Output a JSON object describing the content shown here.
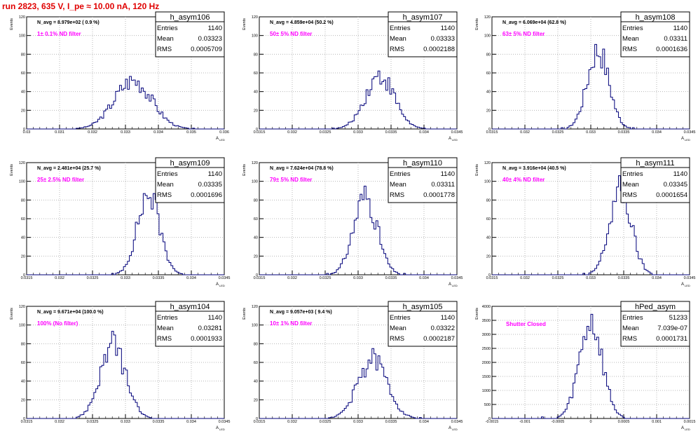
{
  "header": {
    "title": "run 2823,   635 V, I_pe ≈ 10.00 nA, 120 Hz"
  },
  "colors": {
    "hist": "#00007a",
    "accent": "#ff00ff",
    "title": "#e00000",
    "grid": "#b8b8b8"
  },
  "stats_labels": {
    "entries": "Entries",
    "mean": "Mean",
    "rms": "RMS"
  },
  "chart_data": [
    {
      "type": "histogram",
      "name": "h_asym106",
      "entries": "1140",
      "mean": "0.03323",
      "rms": "0.0005709",
      "navg": "N_avg = 8.979e+02 ( 0.9 %)",
      "filter": "1± 0.1% ND filter",
      "xlabel": "A_LED",
      "ylabel": "Events",
      "xlim": [
        0.03,
        0.036
      ],
      "ylim": [
        0,
        120
      ],
      "xticks": [
        "0.03",
        "0.031",
        "0.032",
        "0.033",
        "0.034",
        "0.035",
        "0.036"
      ],
      "yticks": [
        "0",
        "20",
        "40",
        "60",
        "80",
        "100",
        "120"
      ],
      "grid": true,
      "center": 0.03323,
      "sigma": 0.00057,
      "peak": 52
    },
    {
      "type": "histogram",
      "name": "h_asym107",
      "entries": "1140",
      "mean": "0.03333",
      "rms": "0.0002188",
      "navg": "N_avg = 4.859e+04 (50.2 %)",
      "filter": "50± 5% ND filter",
      "xlabel": "A_LED",
      "ylabel": "Events",
      "xlim": [
        0.0315,
        0.0345
      ],
      "ylim": [
        0,
        120
      ],
      "xticks": [
        "0.0315",
        "0.032",
        "0.0325",
        "0.033",
        "0.0335",
        "0.034",
        "0.0345"
      ],
      "yticks": [
        "0",
        "20",
        "40",
        "60",
        "80",
        "100",
        "120"
      ],
      "grid": true,
      "center": 0.03333,
      "sigma": 0.00022,
      "peak": 57
    },
    {
      "type": "histogram",
      "name": "h_asym108",
      "entries": "1140",
      "mean": "0.03311",
      "rms": "0.0001636",
      "navg": "N_avg = 6.069e+04 (62.8 %)",
      "filter": "63± 5% ND filter",
      "xlabel": "A_LED",
      "ylabel": "Events",
      "xlim": [
        0.0315,
        0.0345
      ],
      "ylim": [
        0,
        120
      ],
      "xticks": [
        "0.0315",
        "0.032",
        "0.0325",
        "0.033",
        "0.0335",
        "0.034",
        "0.0345"
      ],
      "yticks": [
        "0",
        "20",
        "40",
        "60",
        "80",
        "100",
        "120"
      ],
      "grid": true,
      "center": 0.03311,
      "sigma": 0.000164,
      "peak": 85
    },
    {
      "type": "histogram",
      "name": "h_asym109",
      "entries": "1140",
      "mean": "0.03335",
      "rms": "0.0001696",
      "navg": "N_avg = 2.481e+04 (25.7 %)",
      "filter": "25± 2.5% ND filter",
      "xlabel": "A_LED",
      "ylabel": "Events",
      "xlim": [
        0.0315,
        0.0345
      ],
      "ylim": [
        0,
        120
      ],
      "xticks": [
        "0.0315",
        "0.032",
        "0.0325",
        "0.033",
        "0.0335",
        "0.034",
        "0.0345"
      ],
      "yticks": [
        "0",
        "20",
        "40",
        "60",
        "80",
        "100",
        "120"
      ],
      "grid": true,
      "center": 0.03335,
      "sigma": 0.00017,
      "peak": 86
    },
    {
      "type": "histogram",
      "name": "h_asym110",
      "entries": "1140",
      "mean": "0.03311",
      "rms": "0.0001778",
      "navg": "N_avg = 7.624e+04 (78.8 %)",
      "filter": "79± 5% ND filter",
      "xlabel": "A_LED",
      "ylabel": "Events",
      "xlim": [
        0.0315,
        0.0345
      ],
      "ylim": [
        0,
        120
      ],
      "xticks": [
        "0.0315",
        "0.032",
        "0.0325",
        "0.033",
        "0.0335",
        "0.034",
        "0.0345"
      ],
      "yticks": [
        "0",
        "20",
        "40",
        "60",
        "80",
        "100",
        "120"
      ],
      "grid": true,
      "center": 0.03311,
      "sigma": 0.000178,
      "peak": 84
    },
    {
      "type": "histogram",
      "name": "h_asym111",
      "entries": "1140",
      "mean": "0.03345",
      "rms": "0.0001654",
      "navg": "N_avg = 3.916e+04 (40.5 %)",
      "filter": "40± 4% ND filter",
      "xlabel": "A_LED",
      "ylabel": "Events",
      "xlim": [
        0.0315,
        0.0345
      ],
      "ylim": [
        0,
        120
      ],
      "xticks": [
        "0.0315",
        "0.032",
        "0.0325",
        "0.033",
        "0.0335",
        "0.034",
        "0.0345"
      ],
      "yticks": [
        "0",
        "20",
        "40",
        "60",
        "80",
        "100",
        "120"
      ],
      "grid": true,
      "center": 0.03345,
      "sigma": 0.000165,
      "peak": 90
    },
    {
      "type": "histogram",
      "name": "h_asym104",
      "entries": "1140",
      "mean": "0.03281",
      "rms": "0.0001933",
      "navg": "N_avg = 9.671e+04 (100.0 %)",
      "filter": "100% (No filter)",
      "xlabel": "A_LED",
      "ylabel": "Events",
      "xlim": [
        0.0315,
        0.0345
      ],
      "ylim": [
        0,
        120
      ],
      "xticks": [
        "0.0315",
        "0.032",
        "0.0325",
        "0.033",
        "0.0335",
        "0.034",
        "0.0345"
      ],
      "yticks": [
        "0",
        "20",
        "40",
        "60",
        "80",
        "100",
        "120"
      ],
      "grid": true,
      "center": 0.03281,
      "sigma": 0.000193,
      "peak": 78
    },
    {
      "type": "histogram",
      "name": "h_asym105",
      "entries": "1140",
      "mean": "0.03322",
      "rms": "0.0002187",
      "navg": "N_avg = 9.057e+03 ( 9.4 %)",
      "filter": "10± 1% ND filter",
      "xlabel": "A_LED",
      "ylabel": "Events",
      "xlim": [
        0.0315,
        0.0345
      ],
      "ylim": [
        0,
        120
      ],
      "xticks": [
        "0.0315",
        "0.032",
        "0.0325",
        "0.033",
        "0.0335",
        "0.034",
        "0.0345"
      ],
      "yticks": [
        "0",
        "20",
        "40",
        "60",
        "80",
        "100",
        "120"
      ],
      "grid": true,
      "center": 0.03322,
      "sigma": 0.00022,
      "peak": 63
    },
    {
      "type": "histogram",
      "name": "hPed_asym",
      "entries": "51233",
      "mean": "7.039e-07",
      "rms": "0.0001731",
      "navg": "",
      "filter": "Shutter Closed",
      "xlabel": "A_LED",
      "ylabel": "Events",
      "xlim": [
        -0.0015,
        0.0015
      ],
      "ylim": [
        0,
        4000
      ],
      "xticks": [
        "-0.0015",
        "-0.001",
        "-0.0005",
        "0",
        "0.0005",
        "0.001",
        "0.0015"
      ],
      "yticks": [
        "0",
        "500",
        "1000",
        "1500",
        "2000",
        "2500",
        "3000",
        "3500",
        "4000"
      ],
      "grid": true,
      "center": 0.0,
      "sigma": 0.000173,
      "peak": 3450
    }
  ]
}
